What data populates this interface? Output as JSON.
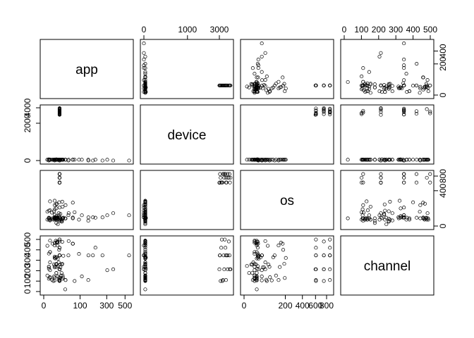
{
  "chart_data": {
    "type": "scatter",
    "variables": [
      "app",
      "device",
      "os",
      "channel"
    ],
    "ticks": {
      "app": [
        0,
        100,
        300,
        500
      ],
      "device": [
        0,
        1000,
        3000
      ],
      "os": [
        0,
        200,
        400,
        600,
        800
      ],
      "channel": [
        0,
        100,
        200,
        300,
        400,
        500
      ]
    },
    "tick_labels": {
      "app": [
        "0",
        "100",
        "300",
        "500"
      ],
      "device": [
        "0",
        "1000",
        "3000"
      ],
      "os": [
        "0",
        "200",
        "400",
        "600",
        "800"
      ],
      "channel": [
        "0",
        "100",
        "200",
        "300",
        "400",
        "500"
      ]
    },
    "left_axis_labels": {
      "device": [
        "0",
        "2000",
        "4000"
      ],
      "channel": [
        "0",
        "100",
        "200",
        "300",
        "400",
        "500"
      ]
    },
    "right_axis_labels": {
      "app": [
        "0",
        "200",
        "400"
      ],
      "os": [
        "0",
        "400",
        "800"
      ]
    },
    "ranges": {
      "app": [
        0,
        560
      ],
      "device": [
        0,
        3900
      ],
      "os": [
        0,
        870
      ],
      "channel": [
        0,
        500
      ]
    },
    "scale": {
      "app": "sqrt",
      "device": "sqrt",
      "os": "sqrt",
      "channel": "linear"
    },
    "grid": false,
    "legend": "none",
    "title": "",
    "colors": {
      "points": "#000000",
      "frame": "#000000",
      "background": "#ffffff"
    },
    "points": [
      [
        3,
        1,
        13,
        379
      ],
      [
        3,
        1,
        19,
        379
      ],
      [
        9,
        1,
        13,
        134
      ],
      [
        12,
        1,
        19,
        178
      ],
      [
        12,
        1,
        13,
        265
      ],
      [
        2,
        1,
        19,
        122
      ],
      [
        14,
        1,
        13,
        467
      ],
      [
        2,
        1,
        13,
        237
      ],
      [
        18,
        1,
        19,
        107
      ],
      [
        15,
        1,
        19,
        145
      ],
      [
        3,
        1,
        10,
        280
      ],
      [
        18,
        1,
        13,
        121
      ],
      [
        8,
        1,
        19,
        145
      ],
      [
        26,
        1,
        19,
        477
      ],
      [
        12,
        1,
        17,
        259
      ],
      [
        15,
        1,
        1,
        245
      ],
      [
        9,
        1,
        25,
        334
      ],
      [
        14,
        1,
        19,
        442
      ],
      [
        2,
        1,
        22,
        364
      ],
      [
        3,
        1,
        13,
        205
      ],
      [
        24,
        1,
        8,
        178
      ],
      [
        19,
        0,
        24,
        213
      ],
      [
        6,
        1,
        19,
        459
      ],
      [
        21,
        1,
        19,
        128
      ],
      [
        12,
        2,
        22,
        326
      ],
      [
        1,
        1,
        13,
        153
      ],
      [
        9,
        1,
        22,
        244
      ],
      [
        64,
        1,
        19,
        459
      ],
      [
        11,
        1,
        19,
        487
      ],
      [
        14,
        1,
        13,
        480
      ],
      [
        12,
        1,
        3,
        178
      ],
      [
        9,
        1,
        17,
        466
      ],
      [
        18,
        1,
        13,
        134
      ],
      [
        25,
        1,
        6,
        259
      ],
      [
        13,
        1,
        22,
        477
      ],
      [
        28,
        1,
        19,
        135
      ],
      [
        151,
        0,
        24,
        347
      ],
      [
        7,
        1,
        13,
        101
      ],
      [
        20,
        1,
        8,
        259
      ],
      [
        10,
        1,
        19,
        317
      ],
      [
        3,
        1,
        13,
        489
      ],
      [
        15,
        1,
        25,
        315
      ],
      [
        26,
        1,
        13,
        121
      ],
      [
        12,
        1,
        32,
        328
      ],
      [
        9,
        1,
        41,
        232
      ],
      [
        18,
        1,
        37,
        107
      ],
      [
        36,
        1,
        18,
        110
      ],
      [
        2,
        2,
        20,
        219
      ],
      [
        29,
        1,
        22,
        343
      ],
      [
        64,
        1,
        23,
        459
      ],
      [
        23,
        1,
        13,
        153
      ],
      [
        35,
        1,
        19,
        21
      ],
      [
        94,
        1,
        13,
        361
      ],
      [
        46,
        0,
        38,
        347
      ],
      [
        17,
        1,
        53,
        280
      ],
      [
        21,
        1,
        47,
        232
      ],
      [
        19,
        3032,
        607,
        347
      ],
      [
        19,
        3543,
        748,
        347
      ],
      [
        19,
        3866,
        866,
        347
      ],
      [
        183,
        0,
        24,
        347
      ],
      [
        1,
        1,
        66,
        439
      ],
      [
        2,
        0,
        76,
        237
      ],
      [
        3,
        1,
        79,
        137
      ],
      [
        12,
        1,
        100,
        328
      ],
      [
        5,
        1,
        58,
        113
      ],
      [
        19,
        0,
        110,
        347
      ],
      [
        9,
        1,
        90,
        107
      ],
      [
        9,
        0,
        140,
        442
      ],
      [
        27,
        1,
        120,
        153
      ],
      [
        47,
        1,
        53,
        484
      ],
      [
        72,
        1,
        61,
        101
      ],
      [
        110,
        1,
        37,
        145
      ],
      [
        8,
        1,
        70,
        259
      ],
      [
        13,
        1,
        160,
        469
      ],
      [
        150,
        1,
        9,
        110
      ],
      [
        202,
        1,
        22,
        421
      ],
      [
        261,
        0,
        24,
        347
      ],
      [
        305,
        1,
        37,
        205
      ],
      [
        365,
        0,
        53,
        213
      ],
      [
        551,
        0,
        37,
        347
      ],
      [
        26,
        1,
        190,
        266
      ],
      [
        3,
        1,
        195,
        130
      ],
      [
        9,
        1,
        205,
        322
      ],
      [
        18,
        1,
        180,
        400
      ],
      [
        12,
        1,
        150,
        235
      ],
      [
        64,
        1,
        175,
        458
      ],
      [
        36,
        1,
        140,
        110
      ],
      [
        19,
        3000,
        600,
        213
      ],
      [
        19,
        3100,
        748,
        101
      ],
      [
        19,
        3700,
        866,
        213
      ],
      [
        19,
        3200,
        607,
        499
      ],
      [
        19,
        3500,
        866,
        420
      ],
      [
        19,
        3400,
        748,
        213
      ],
      [
        19,
        3600,
        607,
        347
      ],
      [
        19,
        3300,
        866,
        110
      ],
      [
        19,
        3800,
        748,
        480
      ],
      [
        19,
        3900,
        607,
        213
      ],
      [
        19,
        3050,
        866,
        347
      ],
      [
        19,
        3250,
        607,
        101
      ],
      [
        19,
        3700,
        748,
        347
      ],
      [
        19,
        3450,
        866,
        499
      ],
      [
        19,
        3150,
        607,
        420
      ],
      [
        19,
        3950,
        748,
        213
      ],
      [
        19,
        3350,
        866,
        347
      ],
      [
        19,
        3550,
        607,
        110
      ]
    ]
  }
}
